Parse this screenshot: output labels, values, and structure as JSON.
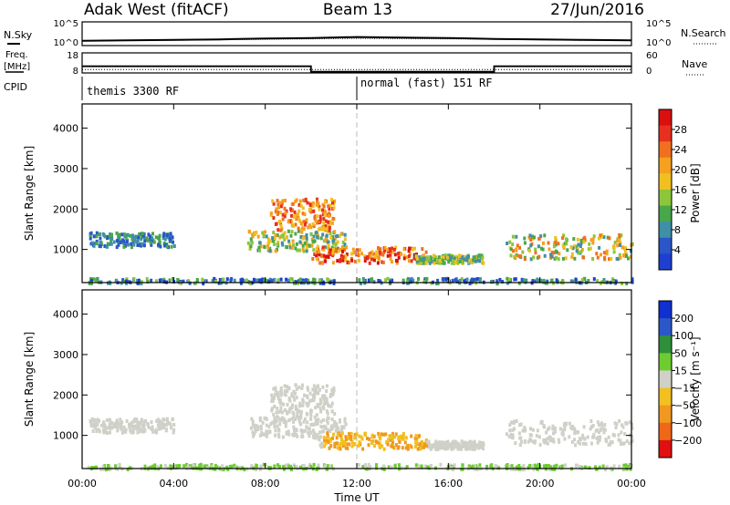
{
  "header": {
    "radar": "Adak West (fitACF)",
    "beam": "Beam 13",
    "date": "27/Jun/2016"
  },
  "colors": {
    "power": [
      "#1f3fd0",
      "#2a56c8",
      "#3f8fa8",
      "#4aa64a",
      "#8cc63a",
      "#f0c020",
      "#f5a020",
      "#f07020",
      "#e83020",
      "#d81010"
    ],
    "velocity": [
      "#1030d0",
      "#2a58c8",
      "#2f8f3a",
      "#6ccc30",
      "#cfd0c8",
      "#f2c020",
      "#f09820",
      "#ee6818",
      "#e01010"
    ]
  },
  "chart_data": [
    {
      "type": "line",
      "panel": "noise",
      "left_label": "N.Sky",
      "right_label": "N.Search",
      "left_ticks": [
        "10^5",
        "10^0"
      ],
      "right_ticks": [
        "10^5",
        "10^0"
      ],
      "series": [
        {
          "name": "N.Sky",
          "x": [
            0,
            2,
            4,
            6,
            8,
            10,
            12,
            14,
            16,
            18,
            20,
            22,
            24
          ],
          "values": [
            1.0,
            1.1,
            1.2,
            1.3,
            1.5,
            1.6,
            1.8,
            1.7,
            1.6,
            1.4,
            1.3,
            1.2,
            1.1
          ]
        },
        {
          "name": "N.Search",
          "x": [
            0,
            2,
            4,
            6,
            8,
            10,
            12,
            14,
            16,
            18,
            20,
            22,
            24
          ],
          "values": [
            1.0,
            1.05,
            1.1,
            1.2,
            1.3,
            1.4,
            1.5,
            1.45,
            1.4,
            1.3,
            1.2,
            1.1,
            1.05
          ]
        }
      ]
    },
    {
      "type": "line",
      "panel": "frequency",
      "left_label": "Freq.",
      "left_unit": "[MHz]",
      "right_label": "Nave",
      "left_ticks": [
        18,
        8
      ],
      "right_ticks": [
        60,
        0
      ],
      "cpid_label": "CPID",
      "cpid_segments": [
        {
          "label": "themis 3300 RF",
          "start": 0
        },
        {
          "label": "normal (fast) 151 RF",
          "start": 12
        }
      ],
      "series": [
        {
          "name": "Freq.",
          "x": [
            0,
            10,
            10,
            18,
            18,
            24
          ],
          "values": [
            11.3,
            11.3,
            8.6,
            8.6,
            11.3,
            11.3
          ]
        },
        {
          "name": "Nave",
          "x": [
            0,
            24
          ],
          "values": [
            10,
            10
          ]
        }
      ]
    },
    {
      "type": "heatmap",
      "panel": "power",
      "ylabel": "Slant Range [km]",
      "ylim": [
        180,
        4600
      ],
      "xlim": [
        0,
        24
      ],
      "y_ticks": [
        1000,
        2000,
        3000,
        4000
      ],
      "colorbar_label": "Power [dB]",
      "colorbar_ticks": [
        4,
        8,
        12,
        16,
        20,
        24,
        28
      ],
      "colorbar_range": [
        0,
        32
      ]
    },
    {
      "type": "heatmap",
      "panel": "velocity",
      "ylabel": "Slant Range [km]",
      "xlabel": "Time UT",
      "ylim": [
        180,
        4600
      ],
      "xlim": [
        0,
        24
      ],
      "y_ticks": [
        1000,
        2000,
        3000,
        4000
      ],
      "x_ticks": [
        "00:00",
        "04:00",
        "08:00",
        "12:00",
        "16:00",
        "20:00",
        "00:00"
      ],
      "colorbar_label": "Velocity [m s⁻¹]",
      "colorbar_ticks": [
        "200",
        "100",
        "50",
        "15",
        "−15",
        "−50",
        "−100",
        "−200"
      ]
    }
  ]
}
